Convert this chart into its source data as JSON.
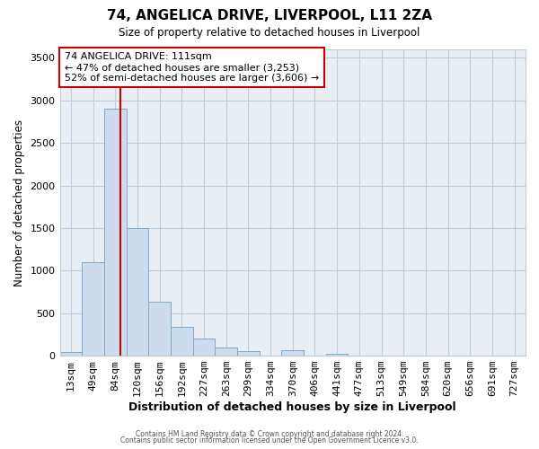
{
  "title": "74, ANGELICA DRIVE, LIVERPOOL, L11 2ZA",
  "subtitle": "Size of property relative to detached houses in Liverpool",
  "xlabel": "Distribution of detached houses by size in Liverpool",
  "ylabel": "Number of detached properties",
  "bin_labels": [
    "13sqm",
    "49sqm",
    "84sqm",
    "120sqm",
    "156sqm",
    "192sqm",
    "227sqm",
    "263sqm",
    "299sqm",
    "334sqm",
    "370sqm",
    "406sqm",
    "441sqm",
    "477sqm",
    "513sqm",
    "549sqm",
    "584sqm",
    "620sqm",
    "656sqm",
    "691sqm",
    "727sqm"
  ],
  "bar_heights": [
    40,
    1100,
    2900,
    1500,
    635,
    335,
    200,
    100,
    50,
    0,
    60,
    0,
    20,
    0,
    0,
    0,
    0,
    0,
    0,
    0,
    0
  ],
  "bar_color": "#ccdcec",
  "bar_edgecolor": "#7aaac8",
  "vline_color": "#cc0000",
  "annotation_title": "74 ANGELICA DRIVE: 111sqm",
  "annotation_line1": "← 47% of detached houses are smaller (3,253)",
  "annotation_line2": "52% of semi-detached houses are larger (3,606) →",
  "annotation_box_facecolor": "#ffffff",
  "annotation_box_edgecolor": "#cc0000",
  "ylim": [
    0,
    3600
  ],
  "yticks": [
    0,
    500,
    1000,
    1500,
    2000,
    2500,
    3000,
    3500
  ],
  "footer1": "Contains HM Land Registry data © Crown copyright and database right 2024.",
  "footer2": "Contains public sector information licensed under the Open Government Licence v3.0.",
  "fig_bg_color": "#ffffff",
  "plot_bg_color": "#e8eef4",
  "grid_color": "#c0ccd8"
}
